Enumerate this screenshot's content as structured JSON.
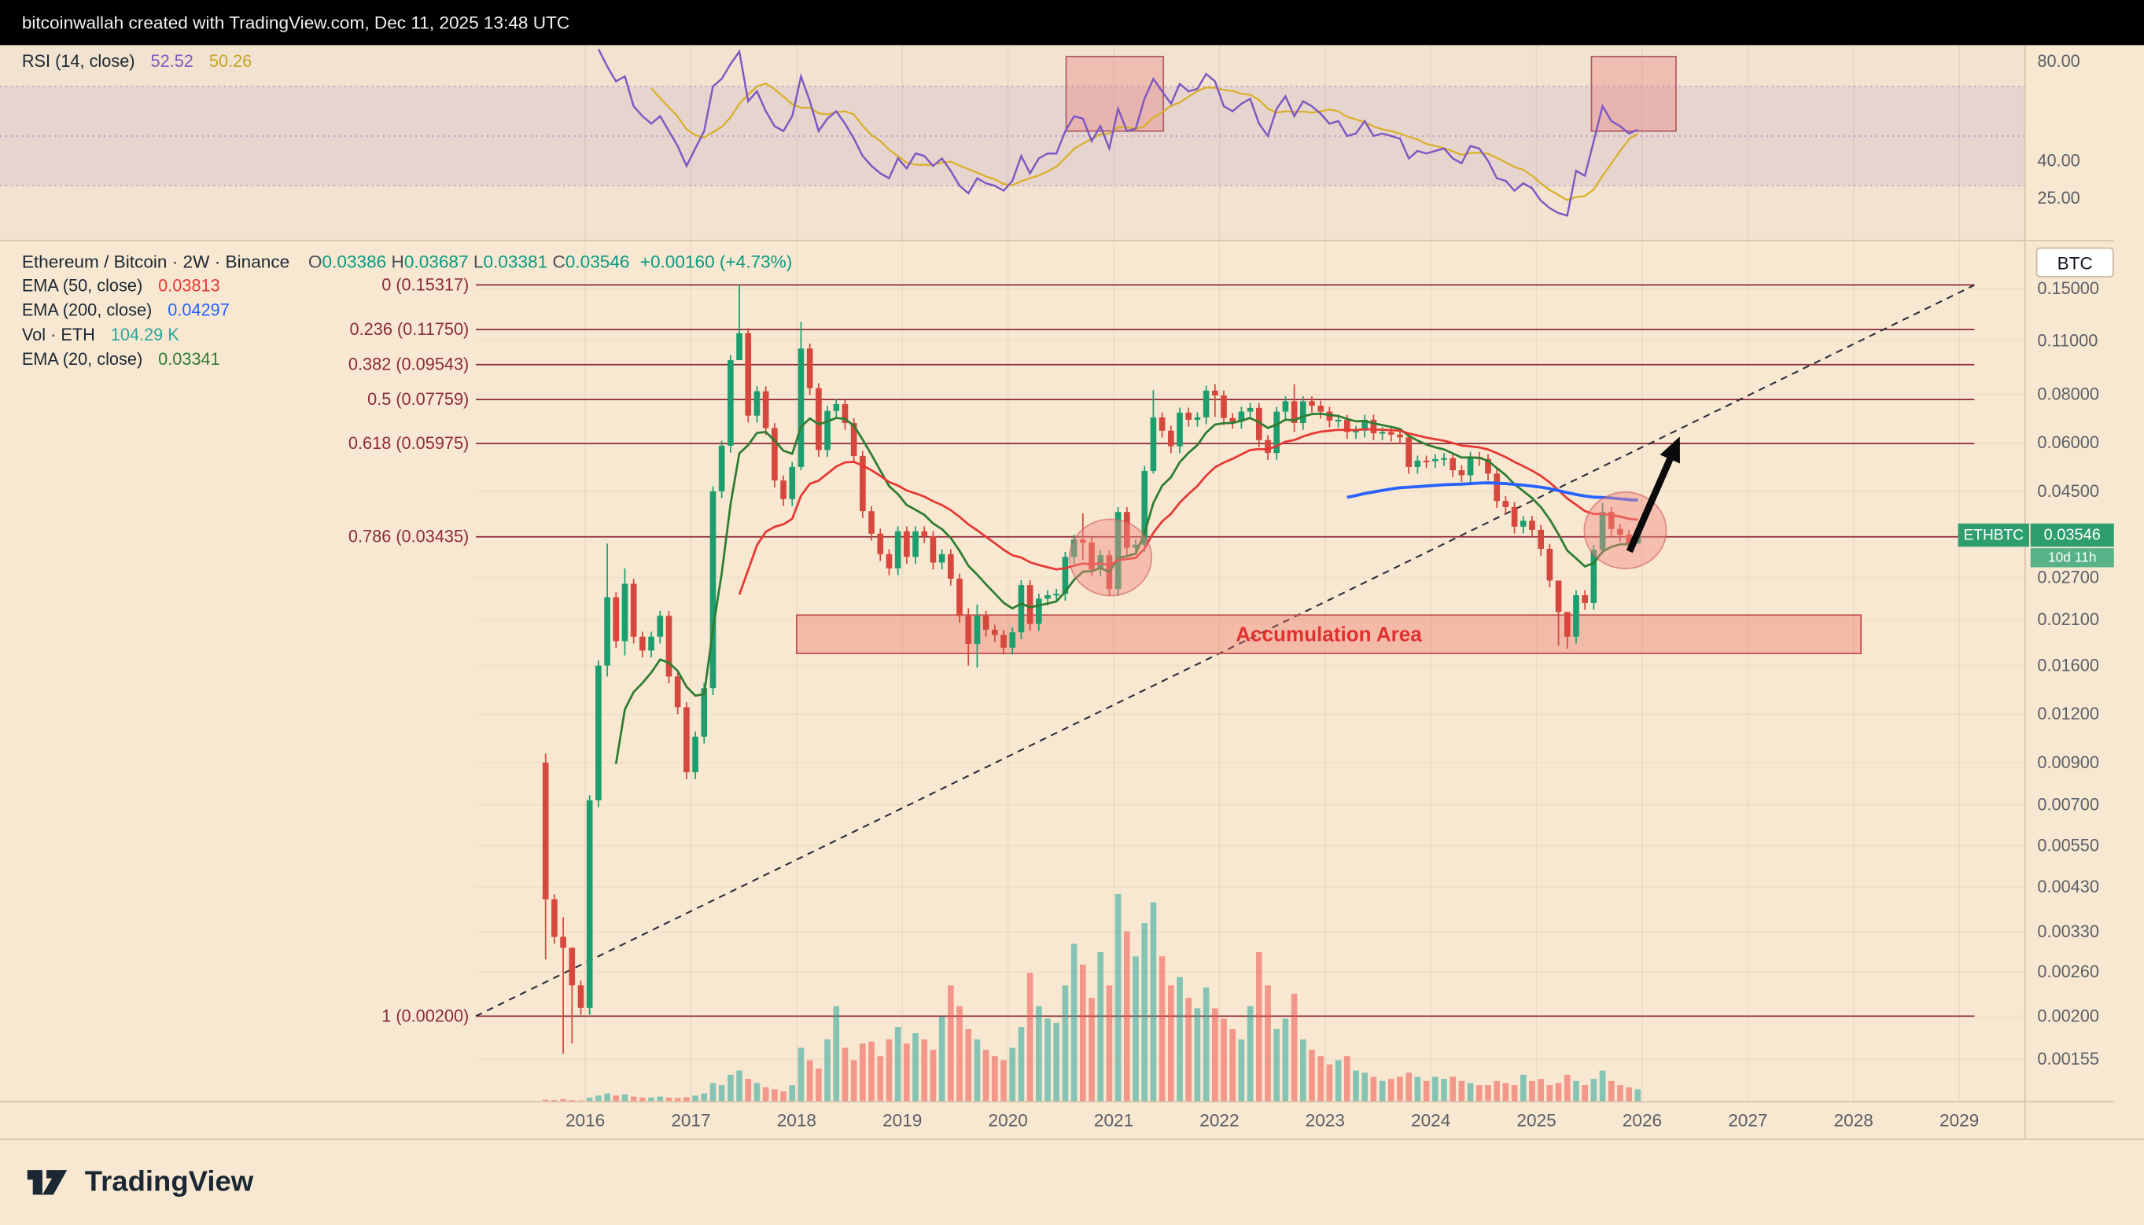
{
  "topbar": {
    "text": "bitcoinwallah created with TradingView.com, Dec 11, 2025 13:48 UTC"
  },
  "rsi_pane": {
    "legend": {
      "label": "RSI (14, close)",
      "value": "52.52",
      "ma_value": "50.26"
    },
    "ticks": [
      "80.00",
      "40.00",
      "25.00"
    ],
    "levels": {
      "upper": 70,
      "middle": 50,
      "lower": 30
    }
  },
  "main_pane": {
    "legend_symbol": {
      "title": "Ethereum / Bitcoin · 2W · Binance",
      "ohlc": [
        {
          "k": "O",
          "v": "0.03386"
        },
        {
          "k": "H",
          "v": "0.03687"
        },
        {
          "k": "L",
          "v": "0.03381"
        },
        {
          "k": "C",
          "v": "0.03546"
        }
      ],
      "change": "+0.00160 (+4.73%)"
    },
    "legend_indicators": [
      {
        "label": "EMA (50, close)",
        "value": "0.03813"
      },
      {
        "label": "EMA (200, close)",
        "value": "0.04297"
      },
      {
        "label": "Vol · ETH",
        "value": "104.29 K"
      },
      {
        "label": "EMA (20, close)",
        "value": "0.03341"
      }
    ],
    "btc_button": "BTC",
    "price_badge": {
      "symbol": "ETHBTC",
      "price": "0.03546",
      "countdown": "10d 11h"
    },
    "accumulation_label": "Accumulation Area"
  },
  "axes": {
    "price_ticks": [
      "0.15000",
      "0.11000",
      "0.08000",
      "0.06000",
      "0.04500",
      "0.02700",
      "0.02100",
      "0.01600",
      "0.01200",
      "0.00900",
      "0.00700",
      "0.00550",
      "0.00430",
      "0.00330",
      "0.00260",
      "0.00200",
      "0.00155"
    ],
    "year_ticks": [
      2016,
      2017,
      2018,
      2019,
      2020,
      2021,
      2022,
      2023,
      2024,
      2025,
      2026,
      2027,
      2028,
      2029
    ]
  },
  "footer": {
    "brand": "TradingView"
  },
  "colors": {
    "candle_up": "#1d9e6e",
    "candle_down": "#d6473d",
    "vol_up": "rgba(38,166,154,0.55)",
    "vol_down": "rgba(239,83,80,0.55)",
    "ema20": "#2e7d32",
    "ema50": "#e53935",
    "ema200": "#2962ff",
    "rsi": "#7e57c2",
    "rsi_ma": "#d8b02a",
    "fib": "#8c2a3a",
    "trendline": "#2a2e39",
    "accum_fill": "rgba(235,110,100,0.38)",
    "accum_stroke": "#c0504d",
    "accum_text": "#e03131",
    "highlight_fill": "rgba(236,128,128,0.38)",
    "highlight_stroke": "#b05c64",
    "badge_green": "#2f9e6e",
    "axis_text": "#5a5f66",
    "separator": "#d8c5a8"
  },
  "chart_data": {
    "type": "candlestick",
    "symbol": "ETHBTC",
    "timeframe": "2W",
    "exchange": "Binance",
    "log_scale": true,
    "ohlc_current": {
      "o": 0.03386,
      "h": 0.03687,
      "l": 0.03381,
      "c": 0.03546
    },
    "t_start": 2015.625,
    "t_step": 0.0833333,
    "first_open": 0.009,
    "close": [
      0.004,
      0.0032,
      0.003,
      0.0024,
      0.0021,
      0.0072,
      0.016,
      0.024,
      0.0185,
      0.026,
      0.019,
      0.0175,
      0.019,
      0.0215,
      0.015,
      0.0125,
      0.0085,
      0.0105,
      0.014,
      0.045,
      0.059,
      0.098,
      0.115,
      0.0705,
      0.0815,
      0.0655,
      0.048,
      0.043,
      0.052,
      0.105,
      0.083,
      0.0575,
      0.0725,
      0.0755,
      0.0675,
      0.0555,
      0.04,
      0.035,
      0.031,
      0.0285,
      0.0355,
      0.0305,
      0.0355,
      0.0345,
      0.0295,
      0.031,
      0.0268,
      0.0215,
      0.0182,
      0.0215,
      0.0198,
      0.0192,
      0.0178,
      0.0195,
      0.0258,
      0.0205,
      0.0238,
      0.0243,
      0.0245,
      0.0305,
      0.0338,
      0.0332,
      0.0283,
      0.0308,
      0.0252,
      0.0398,
      0.0322,
      0.0328,
      0.0508,
      0.0698,
      0.0645,
      0.0588,
      0.0718,
      0.0688,
      0.0698,
      0.0818,
      0.0795,
      0.0695,
      0.068,
      0.0722,
      0.0738,
      0.061,
      0.0565,
      0.0722,
      0.0768,
      0.0675,
      0.0768,
      0.0748,
      0.0722,
      0.0685,
      0.0688,
      0.064,
      0.0645,
      0.0688,
      0.0635,
      0.064,
      0.063,
      0.062,
      0.052,
      0.054,
      0.0538,
      0.0545,
      0.0548,
      0.051,
      0.0495,
      0.0552,
      0.0545,
      0.05,
      0.0425,
      0.041,
      0.0365,
      0.0378,
      0.0358,
      0.032,
      0.0265,
      0.022,
      0.019,
      0.0243,
      0.0232,
      0.0318,
      0.0398,
      0.036,
      0.0348,
      0.033,
      0.0355
    ],
    "wicks": {
      "0": [
        0.0095,
        0.0028
      ],
      "2": [
        0.0036,
        0.0016
      ],
      "3": [
        0.003,
        0.0017
      ],
      "7": [
        0.033,
        0.015
      ],
      "9": [
        0.0285,
        0.017
      ],
      "22": [
        0.15317,
        0.098
      ],
      "29": [
        0.123,
        0.051
      ],
      "48": [
        0.0225,
        0.016
      ],
      "49": [
        0.023,
        0.0158
      ],
      "61": [
        0.0395,
        0.03
      ],
      "69": [
        0.082,
        0.05
      ],
      "76": [
        0.085,
        0.07
      ],
      "85": [
        0.085,
        0.064
      ],
      "115": [
        0.0235,
        0.018
      ],
      "116": [
        0.021,
        0.0177
      ],
      "120": [
        0.042,
        0.031
      ],
      "124": [
        0.0369,
        0.0338
      ]
    },
    "volume": [
      1,
      0.8,
      1.2,
      0.8,
      0.6,
      2,
      3,
      4,
      3,
      3.5,
      2.5,
      2,
      2,
      2.5,
      2,
      1.8,
      2.2,
      3,
      4,
      9,
      8,
      13,
      15,
      11,
      9,
      7,
      6,
      5,
      8,
      26,
      20,
      16,
      30,
      46,
      26,
      20,
      28,
      29,
      22,
      30,
      36,
      28,
      33,
      30,
      25,
      41,
      56,
      46,
      35,
      30,
      25,
      22,
      20,
      26,
      36,
      62,
      46,
      40,
      38,
      56,
      76,
      66,
      50,
      72,
      56,
      100,
      82,
      70,
      86,
      96,
      70,
      56,
      60,
      50,
      45,
      55,
      45,
      40,
      35,
      30,
      46,
      72,
      56,
      35,
      40,
      52,
      30,
      25,
      22,
      18,
      20,
      22,
      15,
      14,
      12,
      10,
      11,
      12,
      14,
      12,
      10,
      12,
      11,
      12,
      10,
      9,
      8,
      8,
      10,
      9,
      8,
      13,
      10,
      11,
      8,
      9,
      13,
      10,
      8,
      11,
      15,
      10,
      8,
      7,
      6
    ],
    "rsi": [
      null,
      null,
      null,
      null,
      null,
      null,
      85,
      78,
      72,
      74,
      62,
      58,
      55,
      58,
      52,
      46,
      38,
      45,
      52,
      70,
      73,
      79,
      84,
      64,
      68,
      60,
      54,
      52,
      58,
      74,
      64,
      52,
      57,
      60,
      55,
      49,
      42,
      38,
      35,
      33,
      41,
      37,
      43,
      42,
      38,
      41,
      36,
      30,
      27,
      33,
      31,
      30,
      28,
      32,
      42,
      35,
      41,
      43,
      43,
      52,
      58,
      57,
      48,
      54,
      45,
      61,
      52,
      53,
      65,
      73,
      68,
      63,
      71,
      68,
      69,
      75,
      72,
      62,
      60,
      63,
      65,
      55,
      50,
      61,
      66,
      58,
      64,
      62,
      59,
      55,
      56,
      50,
      51,
      56,
      50,
      51,
      50,
      49,
      41,
      44,
      43,
      44,
      45,
      41,
      39,
      46,
      45,
      40,
      33,
      32,
      28,
      31,
      29,
      24,
      21,
      19,
      18,
      36,
      34,
      48,
      62,
      56,
      54,
      51,
      52.52
    ],
    "fib_levels": [
      {
        "label": "0 (0.15317)",
        "price": 0.15317
      },
      {
        "label": "0.236 (0.11750)",
        "price": 0.1175
      },
      {
        "label": "0.382 (0.09543)",
        "price": 0.09543
      },
      {
        "label": "0.5 (0.07759)",
        "price": 0.07759
      },
      {
        "label": "0.618 (0.05975)",
        "price": 0.05975
      },
      {
        "label": "0.786 (0.03435)",
        "price": 0.03435
      },
      {
        "label": "1 (0.00200)",
        "price": 0.002
      }
    ],
    "trendline": {
      "from_year": 2014.965,
      "from_price": 0.002,
      "to_year": 2029.14,
      "to_price": 0.1528,
      "style": "dashed"
    },
    "accumulation_area": {
      "from_year": 2018.0,
      "to_year": 2028.07,
      "price_low": 0.0172,
      "price_high": 0.0216
    },
    "circles": [
      {
        "year": 2020.97,
        "price": 0.0304
      },
      {
        "year": 2025.84,
        "price": 0.0357
      }
    ],
    "arrow": {
      "from_year": 2025.88,
      "from_price": 0.0315,
      "to_year": 2026.33,
      "to_price": 0.06
    },
    "rsi_boxes": [
      {
        "from_year": 2020.55,
        "to_year": 2021.47,
        "rsi_low": 52,
        "rsi_high": 82
      },
      {
        "from_year": 2025.52,
        "to_year": 2026.32,
        "rsi_low": 52,
        "rsi_high": 82
      }
    ]
  }
}
